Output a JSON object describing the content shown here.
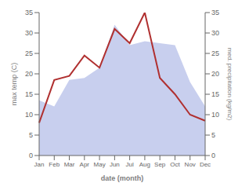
{
  "chart_data": {
    "type": "line",
    "xlabel": "date (month)",
    "ylabel": "max temp (C)",
    "y2label": "med. precipitation (kg/m2)",
    "categories": [
      "Jan",
      "Feb",
      "Mar",
      "Apr",
      "May",
      "Jun",
      "Jul",
      "Aug",
      "Sep",
      "Oct",
      "Nov",
      "Dec"
    ],
    "series": [
      {
        "type": "area",
        "axis": "y2",
        "color": "#c8cfee",
        "values": [
          13.5,
          12.0,
          18.5,
          19.0,
          21.5,
          32.0,
          27.0,
          28.0,
          27.5,
          27.0,
          18.0,
          12.0
        ]
      },
      {
        "type": "line",
        "color": "#b03030",
        "values": [
          8.0,
          18.5,
          19.5,
          24.5,
          21.5,
          31.0,
          27.5,
          35.0,
          19.0,
          15.0,
          10.0,
          8.5
        ]
      }
    ],
    "ylim": [
      0,
      35
    ],
    "yticks": [
      0,
      5,
      10,
      15,
      20,
      25,
      30,
      35
    ],
    "y2lim": [
      0,
      35
    ],
    "y2ticks": [
      0,
      5,
      10,
      15,
      20,
      25,
      30,
      35
    ],
    "grid": false
  }
}
